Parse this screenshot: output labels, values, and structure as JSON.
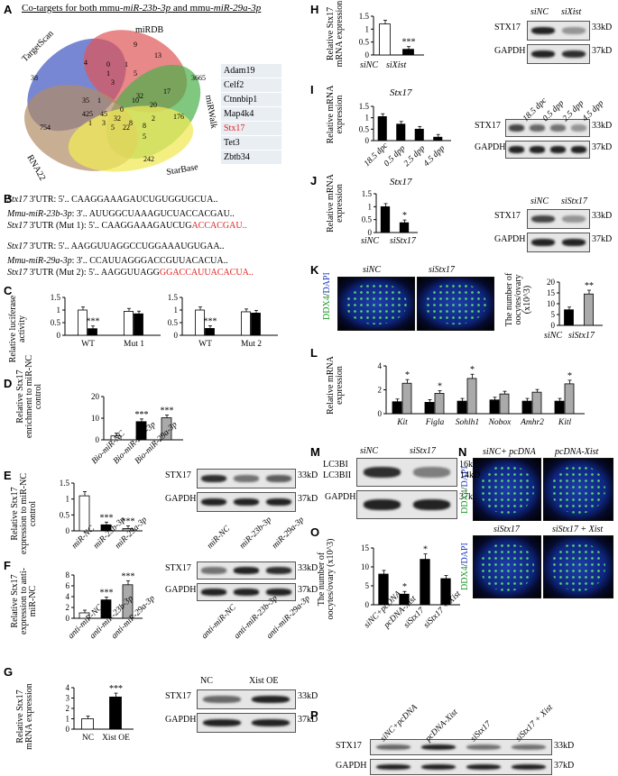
{
  "panels": {
    "A": {
      "label": "A",
      "title_pre": "Co-targets for both mmu-",
      "title_mir1": "miR-23b-3p",
      "title_mid": " and mmu-",
      "title_mir2": "miR-29a-3p",
      "sets": [
        "TargetScan",
        "miRDB",
        "miRWalk",
        "RNA22",
        "StarBase"
      ],
      "numbers": [
        "9",
        "38",
        "4",
        "0",
        "5",
        "3665",
        "13",
        "3",
        "17",
        "35",
        "1",
        "10",
        "20",
        "45",
        "425",
        "32",
        "1",
        "5",
        "176",
        "754",
        "32",
        "8",
        "242",
        "22",
        "2",
        "8",
        "5",
        "3",
        "1",
        "0",
        "1"
      ],
      "genes": [
        "Adam19",
        "Celf2",
        "Ctnnbip1",
        "Map4k4",
        "Stx17",
        "Tet3",
        "Zbtb34"
      ],
      "highlight_gene": "Stx17"
    },
    "B": {
      "label": "B",
      "rows": [
        {
          "name": "Stx17",
          "suffix": " 3'UTR: 5'..",
          "seq": "CAAGGAAAGAUCUGUGGUGCUA.."
        },
        {
          "name": "Mmu-miR-23b-3p",
          "suffix": ": 3'..",
          "seq": "AUUGGCUAAAGUCUACCACGAU.."
        },
        {
          "name": "Stx17",
          "suffix": " 3'UTR (Mut 1): 5'..",
          "seq_black": "CAAGGAAAGAUCUG",
          "seq_red": "ACCACGAU.."
        },
        {
          "name": "Stx17",
          "suffix": " 3'UTR: 5'..",
          "seq": "AAGGUUAGGCCUGGAAAUGUGAA.."
        },
        {
          "name": "Mmu-miR-29a-3p",
          "suffix": ": 3'..",
          "seq": "CCAUUAGGGACCGUUACACUA.."
        },
        {
          "name": "Stx17",
          "suffix": " 3'UTR (Mut 2): 5'..",
          "seq_black": "AAGGUUAGG",
          "seq_red": "GGACCAUUACACUA.."
        }
      ]
    },
    "C": {
      "label": "C",
      "ylabel": "Relative luciferase activity",
      "groups1": [
        "WT",
        "Mut 1"
      ],
      "groups2": [
        "WT",
        "Mut 2"
      ],
      "sig": "***"
    },
    "D": {
      "label": "D",
      "ylabel": "Relative Stx17 enrichment to miR-NC control",
      "cats": [
        "Bio-miR-NC",
        "Bio-miR-23b-3p",
        "Bio-miR-29a-3p"
      ],
      "sig": "***"
    },
    "E": {
      "label": "E",
      "ylabel": "Relative Stx17 expression to miR-NC control",
      "cats": [
        "miR-NC",
        "miR-23b-3p",
        "miR-29a-3p"
      ],
      "sig": "***",
      "blot_rows": [
        "STX17",
        "GAPDH"
      ],
      "kd": [
        "33kD",
        "37kD"
      ]
    },
    "F": {
      "label": "F",
      "ylabel": "Relative Stx17 expression to anti-miR-NC",
      "cats": [
        "anti-miR-NC",
        "anti-miR-23b-3p",
        "anti-miR-29a-3p"
      ],
      "sig": "***",
      "blot_rows": [
        "STX17",
        "GAPDH"
      ],
      "kd": [
        "33kD",
        "37kD"
      ]
    },
    "G": {
      "label": "G",
      "ylabel": "Relative Stx17 mRNA expression",
      "cats": [
        "NC",
        "Xist OE"
      ],
      "sig": "***",
      "blot_cols": [
        "NC",
        "Xist OE"
      ],
      "blot_rows": [
        "STX17",
        "GAPDH"
      ],
      "kd": [
        "33kD",
        "37kD"
      ]
    },
    "H": {
      "label": "H",
      "ylabel": "Relative Stx17 mRNA expression",
      "cats": [
        "siNC",
        "siXist"
      ],
      "sig": "***",
      "blot_cols": [
        "siNC",
        "siXist"
      ],
      "blot_rows": [
        "STX17",
        "GAPDH"
      ],
      "kd": [
        "33kD",
        "37kD"
      ]
    },
    "I": {
      "label": "I",
      "title": "Stx17",
      "ylabel": "Relative mRNA expression",
      "cats": [
        "18.5 dpc",
        "0.5 dpp",
        "2.5 dpp",
        "4.5 dpp"
      ],
      "blot_cols": [
        "18.5 dpc",
        "0.5 dpp",
        "2.5 dpp",
        "4.5 dpp"
      ],
      "blot_rows": [
        "STX17",
        "GAPDH"
      ],
      "kd": [
        "33kD",
        "37kD"
      ]
    },
    "J": {
      "label": "J",
      "title": "Stx17",
      "ylabel": "Relative mRNA expression",
      "cats": [
        "siNC",
        "siStx17"
      ],
      "sig": "*",
      "blot_cols": [
        "siNC",
        "siStx17"
      ],
      "blot_rows": [
        "STX17",
        "GAPDH"
      ],
      "kd": [
        "33kD",
        "37kD"
      ]
    },
    "K": {
      "label": "K",
      "stain": "DDX4/DAPI",
      "img_cols": [
        "siNC",
        "siStx17"
      ],
      "ylabel": "The number of oocytes/ovary (x10^3)",
      "cats": [
        "siNC",
        "siStx17"
      ],
      "sig": "**"
    },
    "L": {
      "label": "L",
      "ylabel": "Relative mRNA expression",
      "cats": [
        "Kit",
        "Figla",
        "Sohlh1",
        "Nobox",
        "Amhr2",
        "Kitl"
      ],
      "sig": "*"
    },
    "M": {
      "label": "M",
      "blot_cols": [
        "siNC",
        "siStx17"
      ],
      "blot_rows": [
        "LC3BI",
        "LC3BII",
        "GAPDH"
      ],
      "kd": [
        "16kD",
        "14kD",
        "37kD"
      ]
    },
    "N": {
      "label": "N",
      "stain": "DDX4/DAPI",
      "img_cols_top": [
        "siNC+ pcDNA",
        "pcDNA-Xist"
      ],
      "img_cols_bottom": [
        "siStx17",
        "siStx17 + Xist"
      ]
    },
    "O": {
      "label": "O",
      "ylabel": "The number of oocytes/ovary (x10^3)",
      "cats": [
        "siNC+pcDNA",
        "pcDNA-Xist",
        "siStx17",
        "siStx17 + Xist"
      ],
      "sig": "*"
    },
    "P": {
      "label": "P",
      "blot_cols": [
        "siNC+pcDNA",
        "pcDNA-Xist",
        "siStx17",
        "siStx17 + Xist"
      ],
      "blot_rows": [
        "STX17",
        "GAPDH"
      ],
      "kd": [
        "33kD",
        "37kD"
      ]
    }
  },
  "chart_data": [
    {
      "panel": "C",
      "type": "bar",
      "categories": [
        "WT",
        "Mut 1"
      ],
      "series": [
        {
          "values": [
            1.0,
            0.95
          ]
        },
        {
          "values": [
            0.26,
            0.85
          ]
        }
      ],
      "ylim": [
        0,
        1.5
      ]
    },
    {
      "panel": "C2",
      "type": "bar",
      "categories": [
        "WT",
        "Mut 2"
      ],
      "series": [
        {
          "values": [
            1.0,
            0.93
          ]
        },
        {
          "values": [
            0.27,
            0.88
          ]
        }
      ],
      "ylim": [
        0,
        1.5
      ]
    },
    {
      "panel": "D",
      "type": "bar",
      "categories": [
        "Bio-miR-NC",
        "Bio-miR-23b-3p",
        "Bio-miR-29a-3p"
      ],
      "values": [
        1.8,
        8.4,
        10.2
      ],
      "ylim": [
        0,
        20
      ]
    },
    {
      "panel": "E",
      "type": "bar",
      "categories": [
        "miR-NC",
        "miR-23b-3p",
        "miR-29a-3p"
      ],
      "values": [
        1.1,
        0.19,
        0.07
      ],
      "ylim": [
        0,
        1.5
      ]
    },
    {
      "panel": "F",
      "type": "bar",
      "categories": [
        "anti-miR-NC",
        "anti-miR-23b-3p",
        "anti-miR-29a-3p"
      ],
      "values": [
        1.0,
        3.4,
        6.2
      ],
      "ylim": [
        0,
        8
      ]
    },
    {
      "panel": "G",
      "type": "bar",
      "categories": [
        "NC",
        "Xist OE"
      ],
      "values": [
        1.0,
        3.1
      ],
      "ylim": [
        0,
        4
      ]
    },
    {
      "panel": "H",
      "type": "bar",
      "categories": [
        "siNC",
        "siXist"
      ],
      "values": [
        1.2,
        0.22
      ],
      "ylim": [
        0,
        1.5
      ]
    },
    {
      "panel": "I",
      "type": "bar",
      "categories": [
        "18.5 dpc",
        "0.5 dpp",
        "2.5 dpp",
        "4.5 dpp"
      ],
      "values": [
        1.05,
        0.72,
        0.5,
        0.15
      ],
      "ylim": [
        0,
        1.5
      ]
    },
    {
      "panel": "J",
      "type": "bar",
      "categories": [
        "siNC",
        "siStx17"
      ],
      "values": [
        1.0,
        0.38
      ],
      "ylim": [
        0,
        1.5
      ]
    },
    {
      "panel": "K",
      "type": "bar",
      "categories": [
        "siNC",
        "siStx17"
      ],
      "values": [
        7.2,
        14.5
      ],
      "ylim": [
        0,
        20
      ]
    },
    {
      "panel": "L",
      "type": "bar",
      "categories": [
        "Kit",
        "Figla",
        "Sohlh1",
        "Nobox",
        "Amhr2",
        "Kitl"
      ],
      "series": [
        {
          "values": [
            1.0,
            0.95,
            1.05,
            1.15,
            1.05,
            1.05
          ]
        },
        {
          "values": [
            2.55,
            1.7,
            2.95,
            1.65,
            1.8,
            2.5
          ]
        }
      ],
      "ylim": [
        0,
        4
      ]
    },
    {
      "panel": "O",
      "type": "bar",
      "categories": [
        "siNC+pcDNA",
        "pcDNA-Xist",
        "siStx17",
        "siStx17 + Xist"
      ],
      "values": [
        8.1,
        2.8,
        12.0,
        6.9
      ],
      "ylim": [
        0,
        15
      ]
    }
  ]
}
